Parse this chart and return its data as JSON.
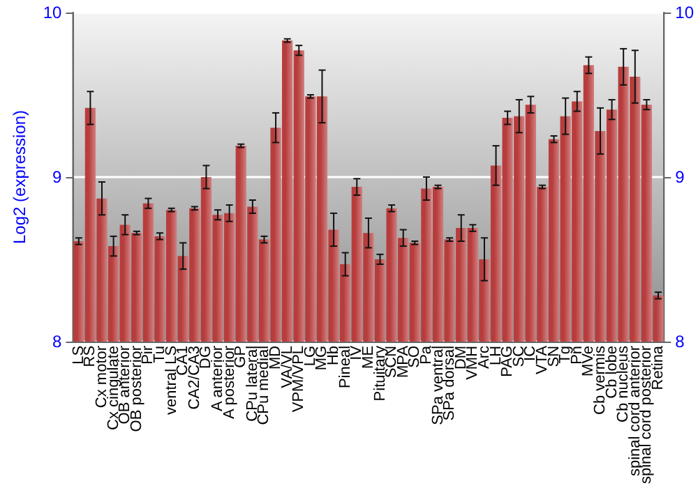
{
  "chart_data": {
    "type": "bar",
    "ylabel": "Log2 (expression)",
    "categories": [
      "LS",
      "RS",
      "Cx motor",
      "Cx cingulate",
      "OB anterior",
      "OB posterior",
      "Pir",
      "Tu",
      "ventral LS",
      "CA1",
      "CA2/CA3",
      "DG",
      "A anterior",
      "A posterior",
      "GP",
      "CPu lateral",
      "CPu medial",
      "MD",
      "VA/VL",
      "VPM/VPL",
      "LG",
      "MG",
      "Hb",
      "Pineal",
      "IV",
      "ME",
      "Pituitary",
      "SCN",
      "MPA",
      "SO",
      "Pa",
      "SPa ventral",
      "SPa dorsal",
      "DM",
      "VMH",
      "Arc",
      "LH",
      "PAG",
      "SC",
      "IC",
      "VTA",
      "SN",
      "Tg",
      "Pn",
      "MVe",
      "Cb vermis",
      "Cb lobe",
      "Cb nucleus",
      "spinal cord anterior",
      "spinal cord posterior",
      "Retina"
    ],
    "values": [
      8.61,
      9.42,
      8.87,
      8.58,
      8.71,
      8.66,
      8.84,
      8.64,
      8.8,
      8.52,
      8.81,
      9.0,
      8.77,
      8.78,
      9.19,
      8.82,
      8.62,
      9.3,
      9.83,
      9.77,
      9.49,
      9.49,
      8.68,
      8.47,
      8.94,
      8.66,
      8.5,
      8.81,
      8.63,
      8.6,
      8.93,
      8.94,
      8.62,
      8.69,
      8.69,
      8.5,
      9.07,
      9.36,
      9.37,
      9.44,
      8.94,
      9.23,
      9.37,
      9.46,
      9.68,
      9.28,
      9.41,
      9.67,
      9.61,
      9.44,
      8.28
    ],
    "errors": [
      0.02,
      0.1,
      0.1,
      0.06,
      0.06,
      0.01,
      0.03,
      0.02,
      0.01,
      0.08,
      0.01,
      0.07,
      0.03,
      0.05,
      0.01,
      0.04,
      0.02,
      0.09,
      0.01,
      0.03,
      0.01,
      0.16,
      0.1,
      0.07,
      0.05,
      0.09,
      0.03,
      0.02,
      0.05,
      0.01,
      0.07,
      0.01,
      0.01,
      0.08,
      0.02,
      0.13,
      0.12,
      0.04,
      0.1,
      0.05,
      0.01,
      0.02,
      0.11,
      0.06,
      0.05,
      0.14,
      0.06,
      0.11,
      0.16,
      0.03,
      0.02
    ],
    "color": "#b83c3c",
    "ylim": [
      8,
      10
    ],
    "yticks": [
      8,
      9,
      10
    ],
    "y2lim": [
      8,
      10
    ],
    "y2ticks": [
      8,
      9,
      10
    ],
    "grid": "y"
  }
}
